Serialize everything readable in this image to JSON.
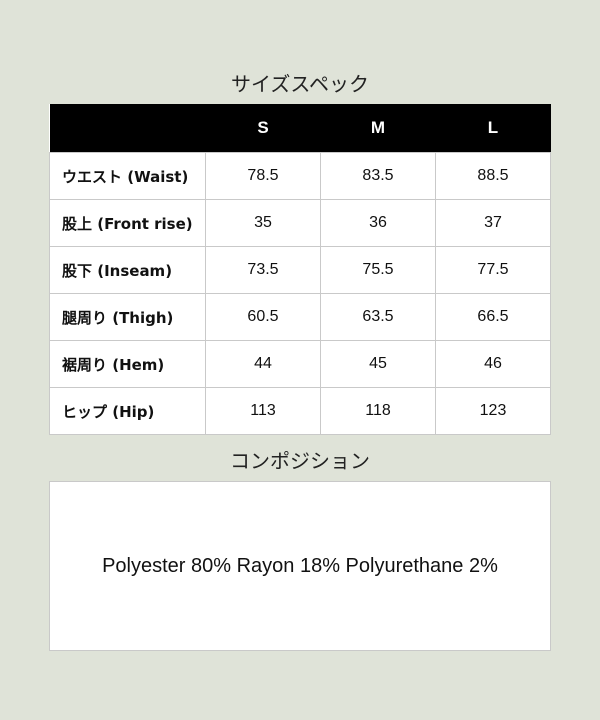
{
  "size_spec": {
    "title": "サイズスペック",
    "columns": [
      "",
      "S",
      "M",
      "L"
    ],
    "rows": [
      {
        "label": "ウエスト (Waist)",
        "values": [
          "78.5",
          "83.5",
          "88.5"
        ]
      },
      {
        "label": "股上 (Front rise)",
        "values": [
          "35",
          "36",
          "37"
        ]
      },
      {
        "label": "股下 (Inseam)",
        "values": [
          "73.5",
          "75.5",
          "77.5"
        ]
      },
      {
        "label": "腿周り (Thigh)",
        "values": [
          "60.5",
          "63.5",
          "66.5"
        ]
      },
      {
        "label": "裾周り (Hem)",
        "values": [
          "44",
          "45",
          "46"
        ]
      },
      {
        "label": "ヒップ (Hip)",
        "values": [
          "113",
          "118",
          "123"
        ]
      }
    ]
  },
  "composition": {
    "title": "コンポジション",
    "text": "Polyester 80% Rayon 18% Polyurethane 2%"
  }
}
